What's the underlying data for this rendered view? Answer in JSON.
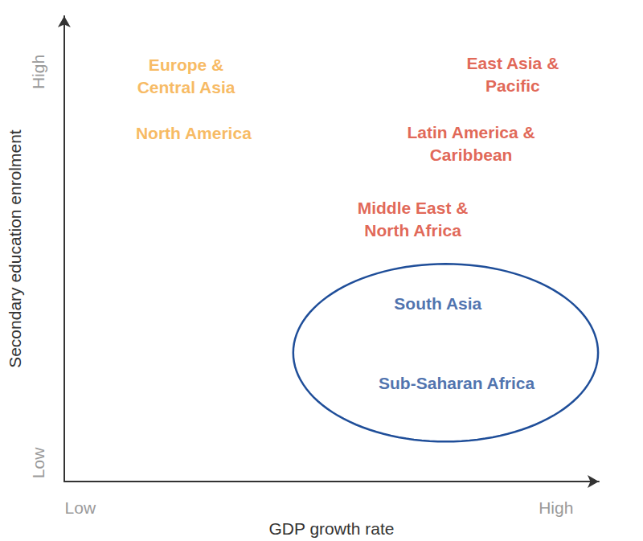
{
  "chart_data": {
    "type": "scatter",
    "x_label": "GDP growth rate",
    "y_label": "Secondary education enrolment",
    "xlim": [
      0,
      10
    ],
    "ylim": [
      0,
      10
    ],
    "xticks": [
      {
        "value": 0.3,
        "label": "Low"
      },
      {
        "value": 9.2,
        "label": "High"
      }
    ],
    "yticks": [
      {
        "value": 0.4,
        "label": "Low"
      },
      {
        "value": 8.8,
        "label": "High"
      }
    ],
    "grid": false,
    "marker": "none",
    "points": [
      {
        "label": "Europe &\nCentral Asia",
        "x": 2.28,
        "y": 8.72,
        "color": "#f5a93a",
        "circled": false
      },
      {
        "label": "North America",
        "x": 2.42,
        "y": 7.49,
        "color": "#f5a93a",
        "circled": false
      },
      {
        "label": "East Asia &\nPacific",
        "x": 8.39,
        "y": 8.75,
        "color": "#d9402b",
        "circled": false
      },
      {
        "label": "Latin America &\nCaribbean",
        "x": 7.61,
        "y": 7.26,
        "color": "#d9402b",
        "circled": false
      },
      {
        "label": "Middle East &\nNorth Africa",
        "x": 6.52,
        "y": 5.64,
        "color": "#d9402b",
        "circled": false
      },
      {
        "label": "South Asia",
        "x": 6.99,
        "y": 3.83,
        "color": "#1f4e99",
        "circled": true
      },
      {
        "label": "Sub-Saharan Africa",
        "x": 7.34,
        "y": 2.12,
        "color": "#1f4e99",
        "circled": true
      }
    ]
  }
}
